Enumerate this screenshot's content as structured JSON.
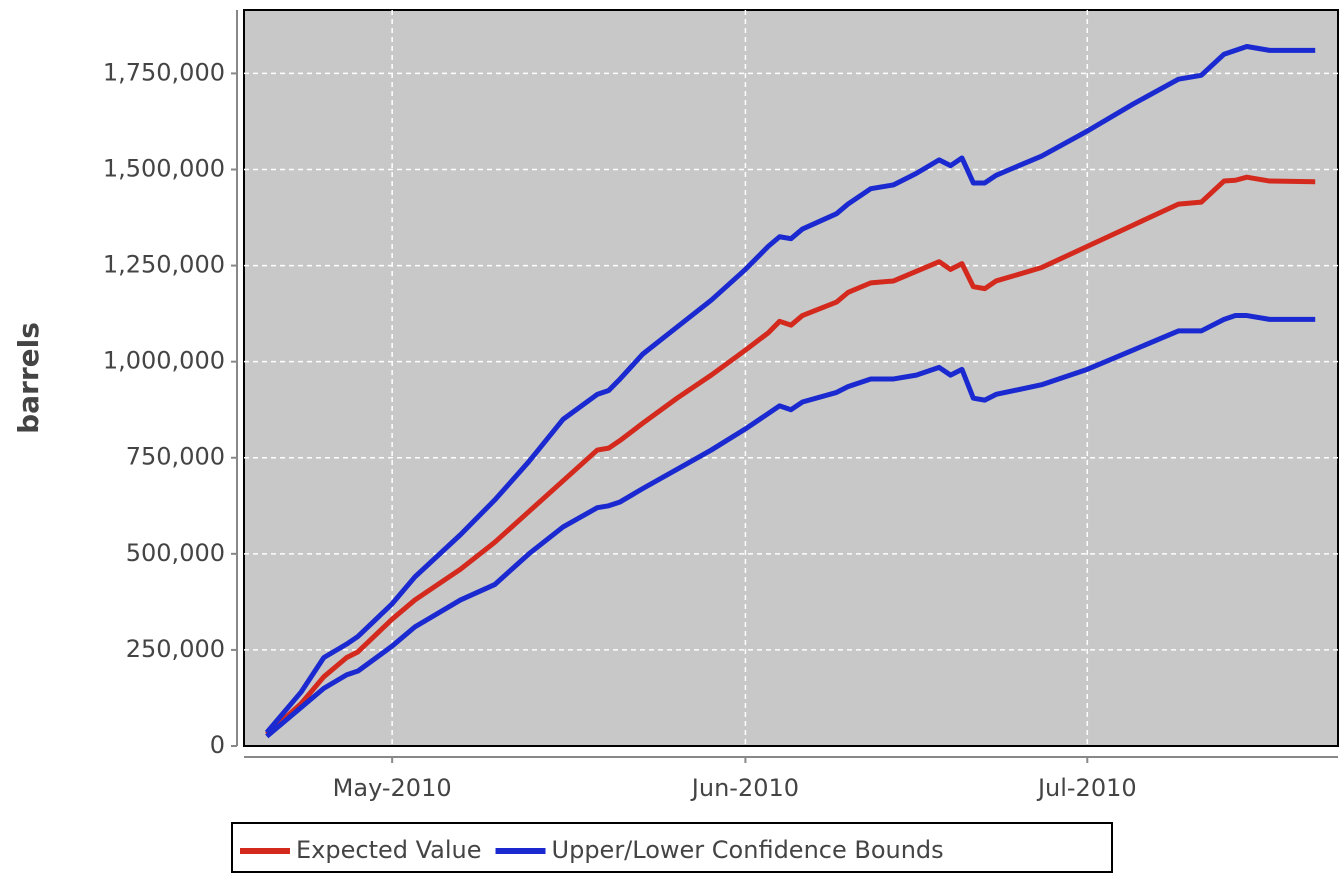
{
  "chart_data": {
    "type": "line",
    "y_label": "barrels",
    "x": [
      110,
      113,
      115,
      117,
      118,
      121,
      123,
      127,
      130,
      133,
      136,
      139,
      140,
      141,
      143,
      146,
      149,
      152,
      154,
      155,
      156,
      157,
      160,
      161,
      163,
      165,
      167,
      169,
      170,
      171,
      172,
      173,
      174,
      178,
      182,
      186,
      190,
      192,
      194,
      195,
      196,
      198,
      202
    ],
    "xlim": [
      108,
      204
    ],
    "xticks": [
      {
        "value": 121,
        "label": "May-2010"
      },
      {
        "value": 152,
        "label": "Jun-2010"
      },
      {
        "value": 182,
        "label": "Jul-2010"
      }
    ],
    "ylim": [
      0,
      1915000
    ],
    "yticks": [
      0,
      {
        "value": 250000,
        "label": "250,000"
      },
      {
        "value": 500000,
        "label": "500,000"
      },
      {
        "value": 750000,
        "label": "750,000"
      },
      {
        "value": 1000000,
        "label": "1,000,000"
      },
      {
        "value": 1250000,
        "label": "1,250,000"
      },
      {
        "value": 1500000,
        "label": "1,500,000"
      },
      {
        "value": 1750000,
        "label": "1,750,000"
      }
    ],
    "grid": true,
    "legend": "bottom",
    "series": [
      {
        "name": "Expected Value",
        "color": "#d42a1e",
        "values": [
          30000,
          110000,
          180000,
          230000,
          245000,
          330000,
          380000,
          460000,
          530000,
          610000,
          690000,
          770000,
          775000,
          795000,
          840000,
          905000,
          965000,
          1030000,
          1075000,
          1105000,
          1095000,
          1120000,
          1155000,
          1180000,
          1205000,
          1210000,
          1235000,
          1260000,
          1240000,
          1255000,
          1195000,
          1190000,
          1210000,
          1245000,
          1300000,
          1355000,
          1410000,
          1415000,
          1470000,
          1472000,
          1480000,
          1470000,
          1468000
        ]
      },
      {
        "name": "Upper/Lower Confidence Bounds",
        "color": "#1a2ad0",
        "values": [
          35000,
          140000,
          230000,
          265000,
          285000,
          370000,
          440000,
          550000,
          640000,
          740000,
          850000,
          915000,
          925000,
          955000,
          1020000,
          1090000,
          1160000,
          1240000,
          1300000,
          1325000,
          1320000,
          1345000,
          1385000,
          1410000,
          1450000,
          1460000,
          1490000,
          1525000,
          1510000,
          1530000,
          1465000,
          1465000,
          1485000,
          1535000,
          1600000,
          1670000,
          1735000,
          1745000,
          1800000,
          1810000,
          1820000,
          1810000,
          1810000
        ]
      },
      {
        "color": "#1a2ad0",
        "values": [
          25000,
          100000,
          150000,
          185000,
          195000,
          260000,
          310000,
          380000,
          420000,
          500000,
          570000,
          620000,
          625000,
          635000,
          670000,
          720000,
          770000,
          825000,
          865000,
          885000,
          875000,
          895000,
          920000,
          935000,
          955000,
          955000,
          965000,
          985000,
          965000,
          980000,
          905000,
          900000,
          915000,
          940000,
          980000,
          1030000,
          1080000,
          1080000,
          1110000,
          1120000,
          1120000,
          1110000,
          1110000
        ]
      }
    ]
  }
}
